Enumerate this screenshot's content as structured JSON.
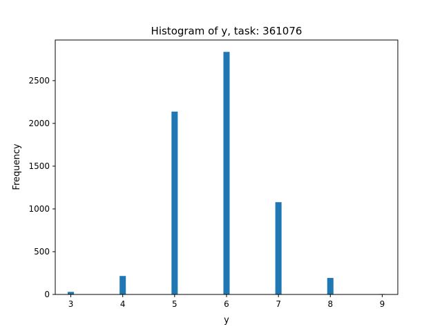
{
  "chart_data": {
    "type": "bar",
    "title": "Histogram of y, task: 361076",
    "xlabel": "y",
    "ylabel": "Frequency",
    "bar_color": "#1f77b4",
    "xlim": [
      2.7,
      9.3
    ],
    "ylim": [
      0,
      2975
    ],
    "grid": false,
    "x_ticks": [
      3,
      4,
      5,
      6,
      7,
      8,
      9
    ],
    "y_ticks": [
      0,
      500,
      1000,
      1500,
      2000,
      2500
    ],
    "bins": [
      {
        "x": 3,
        "value": 30
      },
      {
        "x": 4,
        "value": 216
      },
      {
        "x": 5,
        "value": 2138
      },
      {
        "x": 6,
        "value": 2836
      },
      {
        "x": 7,
        "value": 1079
      },
      {
        "x": 8,
        "value": 193
      },
      {
        "x": 9,
        "value": 5
      }
    ],
    "bin_width": 0.12
  }
}
